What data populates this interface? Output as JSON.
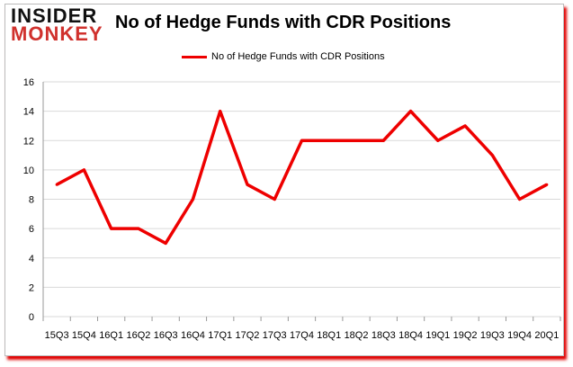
{
  "logo": {
    "line1": "INSIDER",
    "line2": "MONKEY"
  },
  "chart_data": {
    "type": "line",
    "title": "No of Hedge Funds with CDR Positions",
    "categories": [
      "15Q3",
      "15Q4",
      "16Q1",
      "16Q2",
      "16Q3",
      "16Q4",
      "17Q1",
      "17Q2",
      "17Q3",
      "17Q4",
      "18Q1",
      "18Q2",
      "18Q3",
      "18Q4",
      "19Q1",
      "19Q2",
      "19Q3",
      "19Q4",
      "20Q1"
    ],
    "series": [
      {
        "name": "No of Hedge Funds with CDR Positions",
        "color": "#ee0000",
        "values": [
          9,
          10,
          6,
          6,
          5,
          8,
          14,
          9,
          8,
          12,
          12,
          12,
          12,
          14,
          12,
          13,
          11,
          8,
          9
        ]
      }
    ],
    "yticks": [
      0,
      2,
      4,
      6,
      8,
      10,
      12,
      14,
      16
    ],
    "ylim": [
      0,
      16
    ],
    "grid": true,
    "legend": "top",
    "xlabel": "",
    "ylabel": ""
  }
}
